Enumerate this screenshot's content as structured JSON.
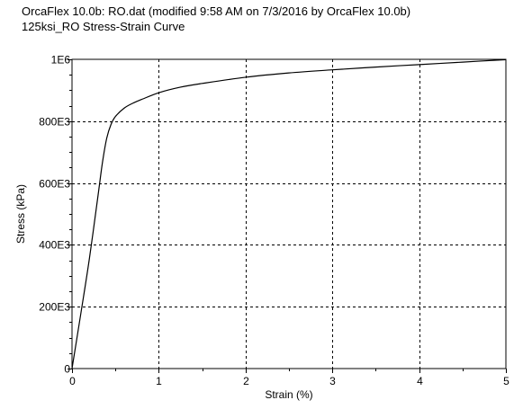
{
  "window": {
    "title": "OrcaFlex 10.0b: RO.dat (modified 9:58 AM on 7/3/2016 by OrcaFlex 10.0b)",
    "subtitle": "125ksi_RO Stress-Strain Curve"
  },
  "chart_data": {
    "type": "line",
    "title": "125ksi_RO Stress-Strain Curve",
    "xlabel": "Strain (%)",
    "ylabel": "Stress (kPa)",
    "xlim": [
      0,
      5
    ],
    "ylim": [
      0,
      1000000
    ],
    "x_ticks": [
      0,
      1,
      2,
      3,
      4,
      5
    ],
    "x_tick_labels": [
      "0",
      "1",
      "2",
      "3",
      "4",
      "5"
    ],
    "y_ticks": [
      0,
      200000,
      400000,
      600000,
      800000,
      1000000
    ],
    "y_tick_labels": [
      "0",
      "200E3",
      "400E3",
      "600E3",
      "800E3",
      "1E6"
    ],
    "grid": true,
    "series": [
      {
        "color": "#000000",
        "x": [
          0,
          0.1,
          0.2,
          0.3,
          0.35,
          0.4,
          0.45,
          0.5,
          0.6,
          0.7,
          0.8,
          1.0,
          1.25,
          1.5,
          2.0,
          2.5,
          3.0,
          3.5,
          4.0,
          4.5,
          5.0
        ],
        "y": [
          0,
          175000,
          355000,
          560000,
          665000,
          745000,
          790000,
          815000,
          842000,
          858000,
          870000,
          892000,
          910000,
          922000,
          942000,
          956000,
          966000,
          975000,
          983000,
          991000,
          999000
        ]
      }
    ]
  }
}
